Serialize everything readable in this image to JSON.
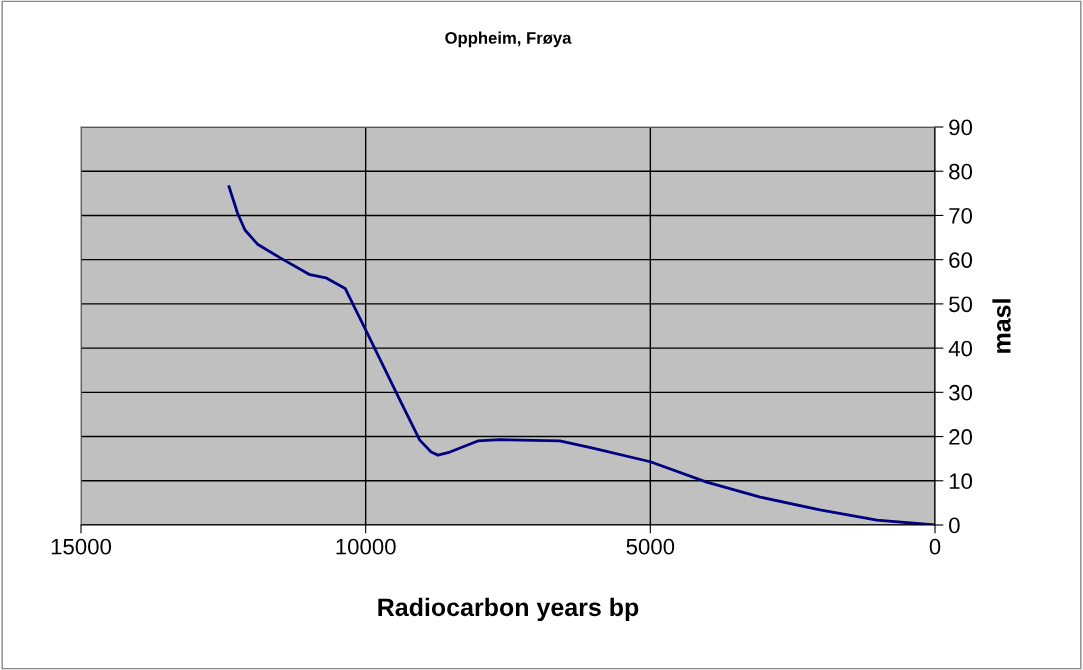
{
  "chart_data": {
    "type": "line",
    "title": "Oppheim, Frøya",
    "xlabel": "Radiocarbon years bp",
    "ylabel": "masl",
    "x": [
      12400,
      12250,
      12120,
      11900,
      11500,
      10980,
      10700,
      10360,
      10000,
      9400,
      9050,
      8850,
      8730,
      8520,
      8030,
      7640,
      6590,
      6010,
      5000,
      4010,
      3070,
      2020,
      1020,
      0
    ],
    "series": [
      {
        "color": "#000080",
        "values": [
          76.5,
          70.5,
          66.7,
          63.5,
          60.4,
          56.6,
          55.9,
          53.5,
          44.1,
          28.3,
          19.2,
          16.5,
          15.8,
          16.5,
          19.0,
          19.3,
          19.0,
          17.4,
          14.3,
          9.7,
          6.3,
          3.4,
          1.1,
          0
        ]
      }
    ],
    "xlim": [
      15000,
      0
    ],
    "xticks": [
      15000,
      10000,
      5000,
      0
    ],
    "ylim": [
      0,
      90
    ],
    "yticks": [
      0,
      10,
      20,
      30,
      40,
      50,
      60,
      70,
      80,
      90
    ],
    "grid": true,
    "marker": "none",
    "line_style": "solid"
  }
}
